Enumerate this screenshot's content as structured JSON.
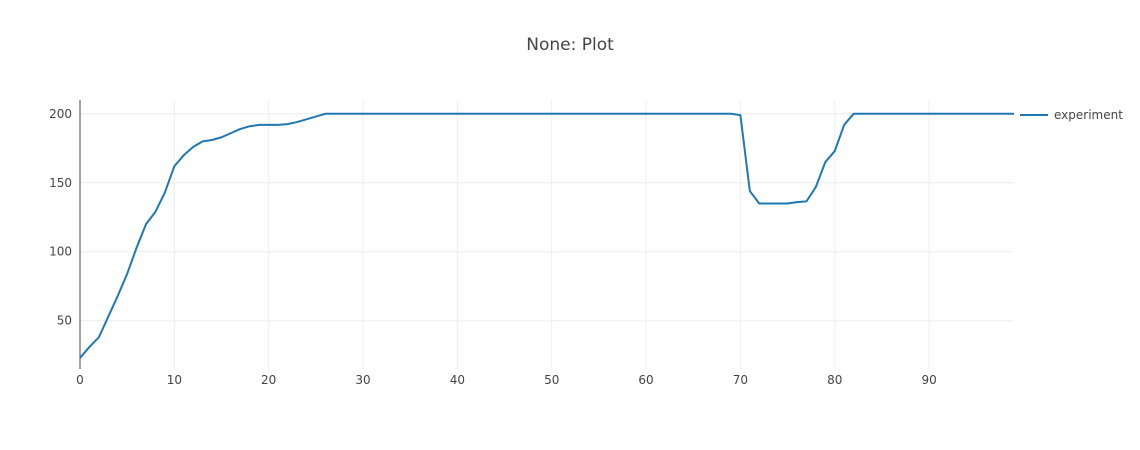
{
  "chart_data": {
    "type": "line",
    "title": "None: Plot",
    "xlabel": "",
    "ylabel": "",
    "xlim": [
      0,
      99
    ],
    "ylim": [
      15,
      210
    ],
    "x_ticks": [
      0,
      10,
      20,
      30,
      40,
      50,
      60,
      70,
      80,
      90
    ],
    "y_ticks": [
      50,
      100,
      150,
      200
    ],
    "grid": true,
    "legend_position": "top-right",
    "series": [
      {
        "name": "experiment",
        "color": "#1f77b4",
        "x": [
          0,
          1,
          2,
          3,
          4,
          5,
          6,
          7,
          8,
          9,
          10,
          11,
          12,
          13,
          14,
          15,
          16,
          17,
          18,
          19,
          20,
          21,
          22,
          23,
          24,
          25,
          26,
          27,
          28,
          29,
          30,
          31,
          32,
          33,
          34,
          35,
          36,
          37,
          38,
          39,
          40,
          41,
          42,
          43,
          44,
          45,
          46,
          47,
          48,
          49,
          50,
          51,
          52,
          53,
          54,
          55,
          56,
          57,
          58,
          59,
          60,
          61,
          62,
          63,
          64,
          65,
          66,
          67,
          68,
          69,
          70,
          71,
          72,
          73,
          74,
          75,
          76,
          77,
          78,
          79,
          80,
          81,
          82,
          83,
          84,
          85,
          86,
          87,
          88,
          89,
          90,
          91,
          92,
          93,
          94,
          95,
          96,
          97,
          98,
          99
        ],
        "y": [
          23,
          31,
          38,
          53,
          68,
          84,
          103,
          120,
          129,
          143,
          162,
          170,
          176,
          180,
          181,
          183,
          186,
          189,
          191,
          192,
          192,
          192,
          192.5,
          194,
          196,
          198,
          200,
          200,
          200,
          200,
          200,
          200,
          200,
          200,
          200,
          200,
          200,
          200,
          200,
          200,
          200,
          200,
          200,
          200,
          200,
          200,
          200,
          200,
          200,
          200,
          200,
          200,
          200,
          200,
          200,
          200,
          200,
          200,
          200,
          200,
          200,
          200,
          200,
          200,
          200,
          200,
          200,
          200,
          200,
          200,
          199,
          144,
          135,
          135,
          135,
          135,
          136,
          136.5,
          147,
          165,
          173,
          192,
          200,
          200,
          200,
          200,
          200,
          200,
          200,
          200,
          200,
          200,
          200,
          200,
          200,
          200,
          200,
          200,
          200,
          200
        ]
      }
    ]
  }
}
